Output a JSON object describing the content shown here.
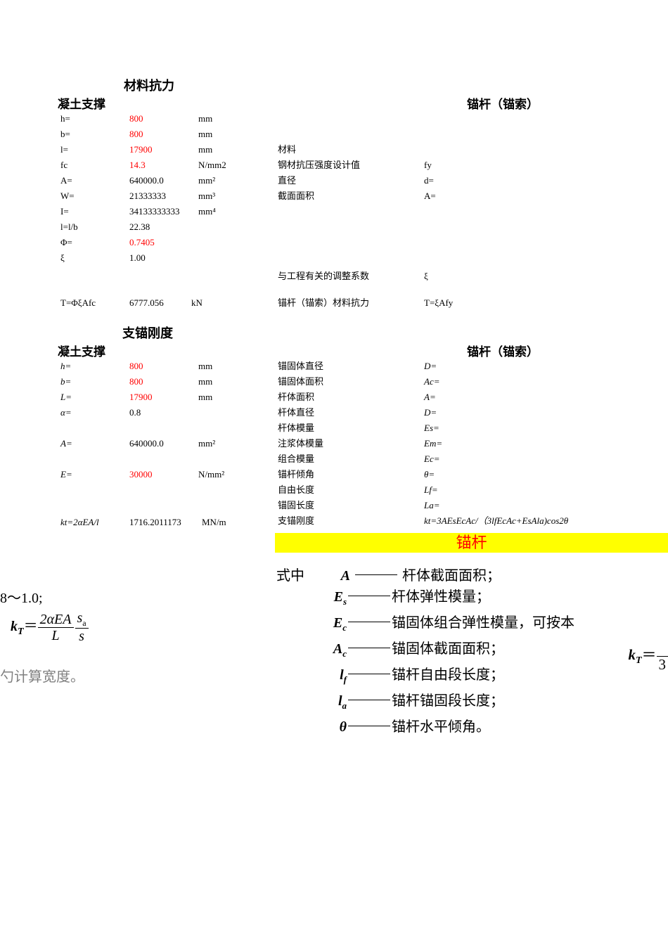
{
  "section1": {
    "title": "材料抗力",
    "leftTitle": "凝土支撑",
    "rightTitle": "锚杆（锚索）",
    "leftRows": [
      {
        "label": "h=",
        "value": "800",
        "value_red": true,
        "unit": "mm"
      },
      {
        "label": "b=",
        "value": "800",
        "value_red": true,
        "unit": "mm"
      },
      {
        "label": "l=",
        "value": "17900",
        "value_red": true,
        "unit": "mm"
      },
      {
        "label": "fc",
        "value": "14.3",
        "value_red": true,
        "unit": "N/mm2"
      },
      {
        "label": "A=",
        "value": "640000.0",
        "value_red": false,
        "unit": "mm²"
      },
      {
        "label": "W=",
        "value": "21333333",
        "value_red": false,
        "unit": "mm³"
      },
      {
        "label": "I=",
        "value": "34133333333",
        "value_red": false,
        "unit": "mm⁴"
      },
      {
        "label": "l=l/b",
        "value": "22.38",
        "value_red": false,
        "unit": ""
      },
      {
        "label": "Φ=",
        "value": "0.7405",
        "value_red": true,
        "unit": ""
      },
      {
        "label": "ξ",
        "value": "1.00",
        "value_red": false,
        "unit": ""
      }
    ],
    "leftResult": {
      "label": "T=ΦξAfc",
      "value": "6777.056",
      "unit": "kN"
    },
    "rightRows": [
      {
        "label": "材料",
        "sym": ""
      },
      {
        "label": "钢材抗压强度设计值",
        "sym": "fy"
      },
      {
        "label": "直径",
        "sym": "d="
      },
      {
        "label": "截面面积",
        "sym": "A="
      }
    ],
    "rightCoef": {
      "label": "与工程有关的调整系数",
      "sym": "ξ"
    },
    "rightResult": {
      "label": "锚杆（锚索）材料抗力",
      "sym": "T=ξAfy"
    }
  },
  "section2": {
    "title": "支锚刚度",
    "leftTitle": "凝土支撑",
    "rightTitle": "锚杆（锚索）",
    "leftRows": [
      {
        "label": "h=",
        "label_it": true,
        "value": "800",
        "value_red": true,
        "unit": "mm"
      },
      {
        "label": "b=",
        "label_it": true,
        "value": "800",
        "value_red": true,
        "unit": "mm"
      },
      {
        "label": "L=",
        "label_it": true,
        "value": "17900",
        "value_red": true,
        "unit": "mm"
      },
      {
        "label": "α=",
        "label_it": true,
        "value": "0.8",
        "value_red": false,
        "unit": ""
      },
      {
        "label": "",
        "label_it": false,
        "value": "",
        "value_red": false,
        "unit": ""
      },
      {
        "label": "A=",
        "label_it": true,
        "value": "640000.0",
        "value_red": false,
        "unit": "mm²"
      },
      {
        "label": "",
        "label_it": false,
        "value": "",
        "value_red": false,
        "unit": ""
      },
      {
        "label": "E=",
        "label_it": true,
        "value": "30000",
        "value_red": true,
        "unit": "N/mm²"
      }
    ],
    "leftResult": {
      "label": "kt=2αEA/l",
      "value": "1716.2011173",
      "unit": "MN/m"
    },
    "rightRows": [
      {
        "label": "锚固体直径",
        "sym": "D="
      },
      {
        "label": "锚固体面积",
        "sym": "Ac="
      },
      {
        "label": "杆体面积",
        "sym": "A="
      },
      {
        "label": "杆体直径",
        "sym": "D="
      },
      {
        "label": "杆体模量",
        "sym": "Es="
      },
      {
        "label": "注浆体模量",
        "sym": "Em="
      },
      {
        "label": "组合模量",
        "sym": "Ec="
      },
      {
        "label": "锚杆倾角",
        "sym": "θ="
      },
      {
        "label": "自由长度",
        "sym": "Lf="
      },
      {
        "label": "锚固长度",
        "sym": "La="
      },
      {
        "label": "支锚刚度",
        "sym": "kt=3AEsEcAc/（3lfEcAc+EsAla)cos2θ"
      }
    ]
  },
  "yellowBand": "锚杆",
  "leftFormula": {
    "line1": "8～1.0;",
    "kT": "k",
    "kSubT": "T",
    "eq": "＝",
    "num": "2αEA",
    "denL": "L",
    "num2": "s",
    "num2sub": "a",
    "den2": "s",
    "line3": "勺计算宽度。"
  },
  "definitions": {
    "intro": "式中",
    "introSym": "A",
    "rows": [
      {
        "sym": "",
        "text": "杆体截面面积；",
        "symOverride": ""
      },
      {
        "sym": "E",
        "sub": "s",
        "text": "杆体弹性模量；"
      },
      {
        "sym": "E",
        "sub": "c",
        "text": "锚固体组合弹性模量，可按本"
      },
      {
        "sym": "A",
        "sub": "c",
        "text": "锚固体截面面积；"
      },
      {
        "sym": "l",
        "sub": "f",
        "text": "锚杆自由段长度；"
      },
      {
        "sym": "l",
        "sub": "a",
        "text": "锚杆锚固段长度；"
      },
      {
        "sym": "θ",
        "sub": "",
        "text": "锚杆水平倾角。"
      }
    ]
  },
  "ktr": {
    "k": "k",
    "T": "T",
    "eq": "＝",
    "den": "3"
  }
}
